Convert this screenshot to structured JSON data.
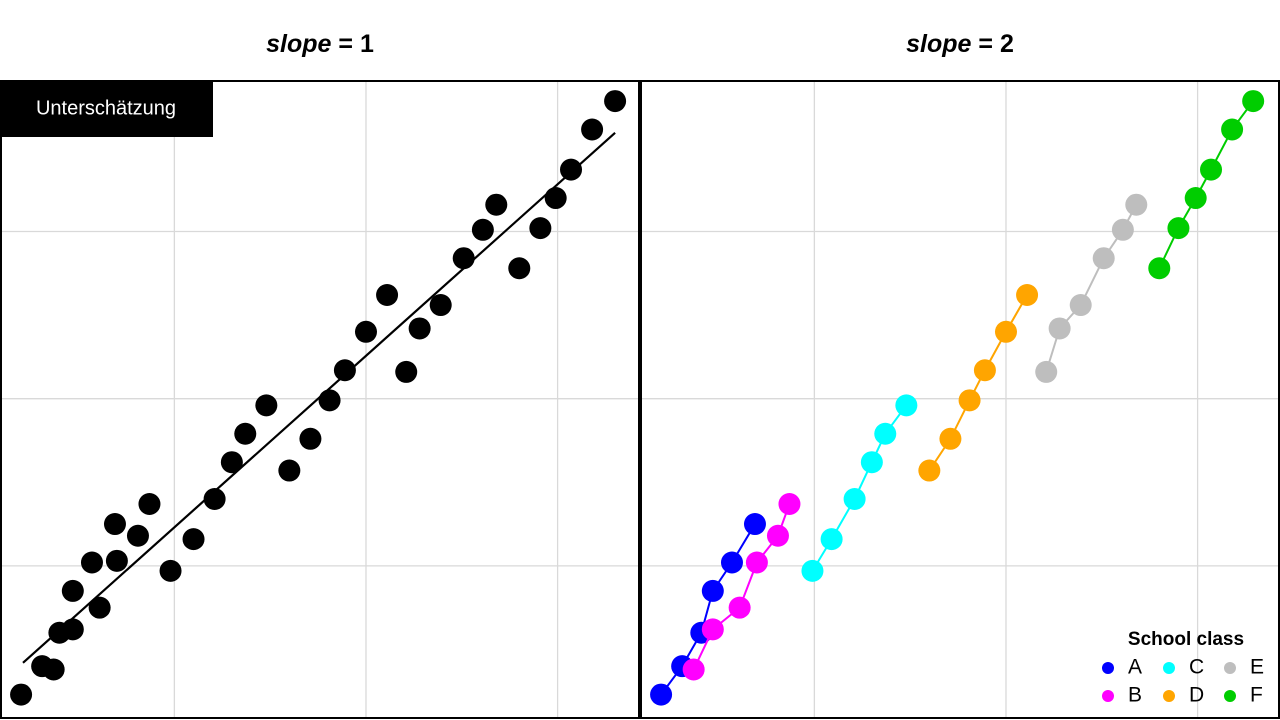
{
  "chart_data": [
    {
      "type": "scatter",
      "title": [
        "slope",
        "= 1"
      ],
      "annotation": "Unterschätzung",
      "xlim": [
        0.09,
        3.43
      ],
      "ylim": [
        0.09,
        3.9
      ],
      "xticks": [
        1,
        2,
        3
      ],
      "yticks": [
        1,
        2,
        3
      ],
      "grid": true,
      "color": "#000000",
      "x": [
        0.2,
        0.31,
        0.37,
        0.4,
        0.47,
        0.47,
        0.61,
        0.57,
        0.7,
        0.69,
        0.81,
        0.87,
        0.98,
        1.1,
        1.21,
        1.3,
        1.37,
        1.48,
        1.6,
        1.71,
        1.81,
        1.89,
        2.0,
        2.11,
        2.21,
        2.28,
        2.39,
        2.51,
        2.61,
        2.68,
        2.8,
        2.91,
        2.99,
        3.07,
        3.18,
        3.3
      ],
      "y": [
        0.23,
        0.4,
        0.38,
        0.6,
        0.62,
        0.85,
        0.75,
        1.02,
        1.03,
        1.25,
        1.18,
        1.37,
        0.97,
        1.16,
        1.4,
        1.62,
        1.79,
        1.96,
        1.57,
        1.76,
        1.99,
        2.17,
        2.4,
        2.62,
        2.16,
        2.42,
        2.56,
        2.84,
        3.01,
        3.16,
        2.78,
        3.02,
        3.2,
        3.37,
        3.61,
        3.78
      ],
      "fit_line": {
        "x": [
          0.21,
          3.3
        ],
        "y": [
          0.42,
          3.59
        ]
      }
    },
    {
      "type": "scatter",
      "title": [
        "slope",
        "= 2"
      ],
      "xlim": [
        0.09,
        3.43
      ],
      "ylim": [
        0.09,
        3.9
      ],
      "xticks": [
        1,
        2,
        3
      ],
      "yticks": [
        1,
        2,
        3
      ],
      "grid": true,
      "legend_title": "School class",
      "legend": "bottom-right",
      "series": [
        {
          "name": "A",
          "color": "#0000ff",
          "x": [
            0.2,
            0.31,
            0.41,
            0.47,
            0.57,
            0.69
          ],
          "values": [
            0.23,
            0.4,
            0.6,
            0.85,
            1.02,
            1.25
          ]
        },
        {
          "name": "B",
          "color": "#ff00ff",
          "x": [
            0.37,
            0.47,
            0.61,
            0.7,
            0.81,
            0.87
          ],
          "values": [
            0.38,
            0.62,
            0.75,
            1.02,
            1.18,
            1.37
          ]
        },
        {
          "name": "C",
          "color": "#00ffff",
          "x": [
            0.99,
            1.09,
            1.21,
            1.3,
            1.37,
            1.48
          ],
          "values": [
            0.97,
            1.16,
            1.4,
            1.62,
            1.79,
            1.96
          ]
        },
        {
          "name": "D",
          "color": "#ffa500",
          "x": [
            1.6,
            1.71,
            1.81,
            1.89,
            2.0,
            2.11
          ],
          "values": [
            1.57,
            1.76,
            1.99,
            2.17,
            2.4,
            2.62
          ]
        },
        {
          "name": "E",
          "color": "#bebebe",
          "x": [
            2.21,
            2.28,
            2.39,
            2.51,
            2.61,
            2.68
          ],
          "values": [
            2.16,
            2.42,
            2.56,
            2.84,
            3.01,
            3.16
          ]
        },
        {
          "name": "F",
          "color": "#00cd00",
          "x": [
            2.8,
            2.9,
            2.99,
            3.07,
            3.18,
            3.29
          ],
          "values": [
            2.78,
            3.02,
            3.2,
            3.37,
            3.61,
            3.78
          ]
        }
      ]
    }
  ]
}
